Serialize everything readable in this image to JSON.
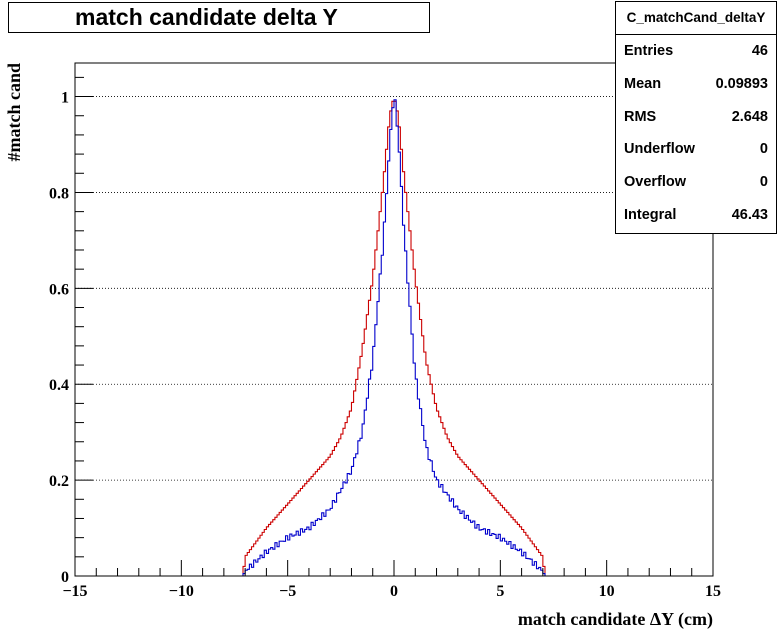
{
  "chart_data": {
    "type": "line",
    "title": "match candidate delta Y",
    "xlabel": "match candidate  ΔY (cm)",
    "ylabel": "#match cand",
    "xlim": [
      -15,
      15
    ],
    "ylim": [
      0,
      1.07
    ],
    "x_ticks": [
      -15,
      -10,
      -5,
      0,
      5,
      10,
      15
    ],
    "x_tick_labels": [
      "−15",
      "−10",
      "−5",
      "0",
      "5",
      "10",
      "15"
    ],
    "y_ticks": [
      0,
      0.2,
      0.4,
      0.6,
      0.8,
      1
    ],
    "y_tick_labels": [
      "0",
      "0.2",
      "0.4",
      "0.6",
      "0.8",
      "1"
    ],
    "grid": "horizontal dotted",
    "legend": "none",
    "stats": {
      "name": "C_matchCand_deltaY",
      "rows": [
        {
          "label": "Entries",
          "value": "46"
        },
        {
          "label": "Mean",
          "value": "0.09893"
        },
        {
          "label": "RMS",
          "value": "2.648"
        },
        {
          "label": "Underflow",
          "value": "0"
        },
        {
          "label": "Overflow",
          "value": "0"
        },
        {
          "label": "Integral",
          "value": "46.43"
        }
      ]
    },
    "series": [
      {
        "color": "#cc0000",
        "x": [
          -15,
          -7.1,
          -7.0,
          -6.0,
          -5.0,
          -4.0,
          -3.0,
          -2.5,
          -2.0,
          -1.5,
          -1.0,
          -0.5,
          -0.2,
          0.0,
          0.2,
          0.5,
          1.0,
          1.5,
          2.0,
          2.5,
          3.0,
          4.0,
          5.0,
          6.0,
          7.0,
          7.1,
          15
        ],
        "y": [
          0,
          0,
          0.04,
          0.1,
          0.15,
          0.2,
          0.25,
          0.29,
          0.35,
          0.47,
          0.62,
          0.82,
          0.96,
          1.0,
          0.96,
          0.82,
          0.62,
          0.45,
          0.35,
          0.29,
          0.25,
          0.2,
          0.15,
          0.1,
          0.04,
          0,
          0
        ]
      },
      {
        "color": "#0000cc",
        "x": [
          -15,
          -7.1,
          -7.0,
          -6.0,
          -5.0,
          -4.0,
          -3.0,
          -2.0,
          -1.5,
          -1.0,
          -0.5,
          -0.2,
          0.0,
          0.2,
          0.5,
          1.0,
          1.5,
          2.0,
          3.0,
          4.0,
          5.0,
          6.0,
          7.0,
          7.1,
          15
        ],
        "y": [
          0,
          0,
          0.01,
          0.05,
          0.08,
          0.1,
          0.14,
          0.22,
          0.3,
          0.45,
          0.7,
          0.9,
          1.01,
          0.92,
          0.7,
          0.42,
          0.27,
          0.2,
          0.14,
          0.1,
          0.08,
          0.05,
          0.01,
          0,
          0
        ]
      }
    ]
  }
}
